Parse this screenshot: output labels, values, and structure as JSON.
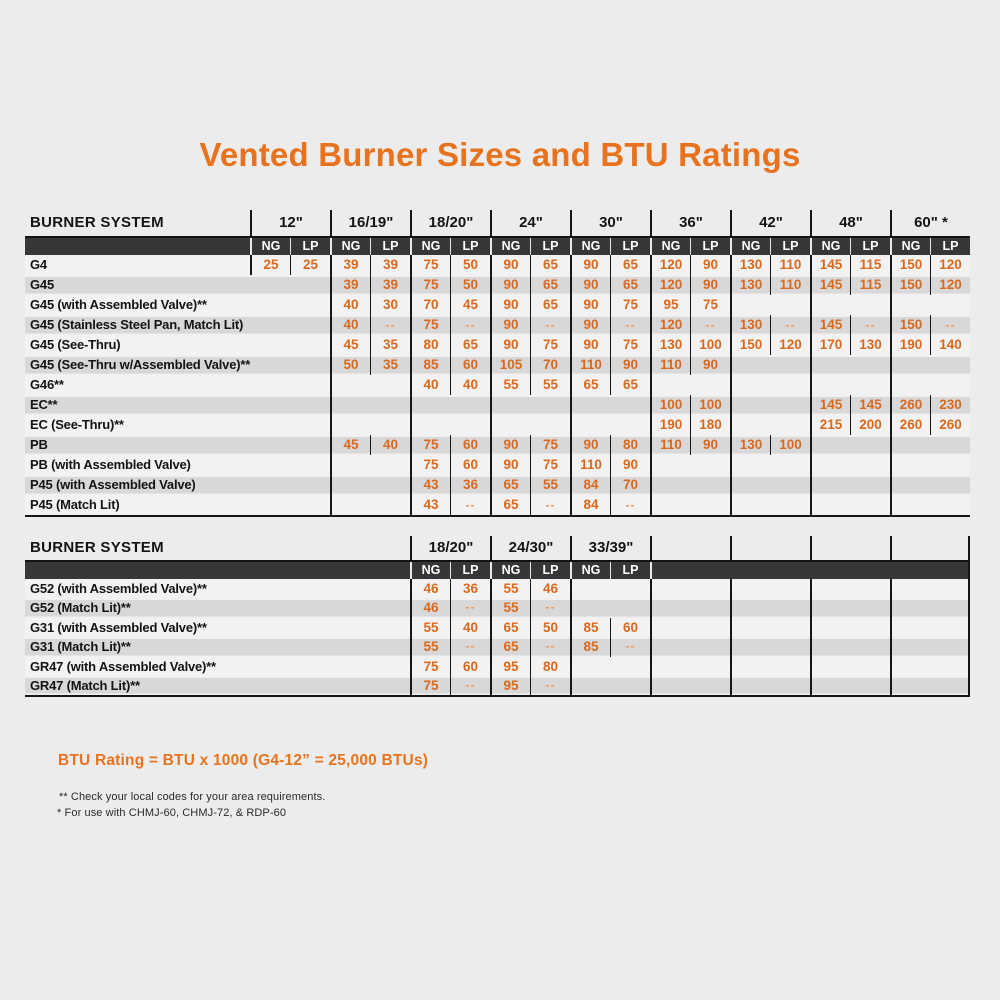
{
  "page": {
    "title": "Vented Burner Sizes and BTU Ratings"
  },
  "colors": {
    "accent_orange": "#e8731f",
    "value_orange": "#d9691f",
    "dash_orange": "#e59a60",
    "header_strip": "#373737",
    "row_light": "#f2f2f2",
    "row_band": "#d8d8d8",
    "line_black": "#161616",
    "page_background": "#ececec"
  },
  "table1": {
    "header_label": "BURNER SYSTEM",
    "gas_labels": [
      "NG",
      "LP"
    ],
    "sizes": [
      "12\"",
      "16/19\"",
      "18/20\"",
      "24\"",
      "30\"",
      "36\"",
      "42\"",
      "48\"",
      "60\" *"
    ],
    "rows": [
      {
        "name": "G4",
        "cells": [
          [
            25,
            25
          ],
          [
            39,
            39
          ],
          [
            75,
            50
          ],
          [
            90,
            65
          ],
          [
            90,
            65
          ],
          [
            120,
            90
          ],
          [
            130,
            110
          ],
          [
            145,
            115
          ],
          [
            150,
            120
          ]
        ]
      },
      {
        "name": "G45",
        "cells": [
          null,
          [
            39,
            39
          ],
          [
            75,
            50
          ],
          [
            90,
            65
          ],
          [
            90,
            65
          ],
          [
            120,
            90
          ],
          [
            130,
            110
          ],
          [
            145,
            115
          ],
          [
            150,
            120
          ]
        ]
      },
      {
        "name": "G45 (with Assembled Valve)**",
        "cells": [
          null,
          [
            40,
            30
          ],
          [
            70,
            45
          ],
          [
            90,
            65
          ],
          [
            90,
            75
          ],
          [
            95,
            75
          ],
          null,
          null,
          null
        ]
      },
      {
        "name": "G45 (Stainless Steel Pan, Match Lit)",
        "cells": [
          null,
          [
            40,
            "--"
          ],
          [
            75,
            "--"
          ],
          [
            90,
            "--"
          ],
          [
            90,
            "--"
          ],
          [
            120,
            "--"
          ],
          [
            130,
            "--"
          ],
          [
            145,
            "--"
          ],
          [
            150,
            "--"
          ]
        ]
      },
      {
        "name": "G45 (See-Thru)",
        "cells": [
          null,
          [
            45,
            35
          ],
          [
            80,
            65
          ],
          [
            90,
            75
          ],
          [
            90,
            75
          ],
          [
            130,
            100
          ],
          [
            150,
            120
          ],
          [
            170,
            130
          ],
          [
            190,
            140
          ]
        ]
      },
      {
        "name": "G45 (See-Thru w/Assembled Valve)**",
        "cells": [
          null,
          [
            50,
            35
          ],
          [
            85,
            60
          ],
          [
            105,
            70
          ],
          [
            110,
            90
          ],
          [
            110,
            90
          ],
          null,
          null,
          null
        ]
      },
      {
        "name": "G46**",
        "cells": [
          null,
          null,
          [
            40,
            40
          ],
          [
            55,
            55
          ],
          [
            65,
            65
          ],
          null,
          null,
          null,
          null
        ]
      },
      {
        "name": "EC**",
        "cells": [
          null,
          null,
          null,
          null,
          null,
          [
            100,
            100
          ],
          null,
          [
            145,
            145
          ],
          [
            260,
            230
          ]
        ]
      },
      {
        "name": "EC (See-Thru)**",
        "cells": [
          null,
          null,
          null,
          null,
          null,
          [
            190,
            180
          ],
          null,
          [
            215,
            200
          ],
          [
            260,
            260
          ]
        ]
      },
      {
        "name": "PB",
        "cells": [
          null,
          [
            45,
            40
          ],
          [
            75,
            60
          ],
          [
            90,
            75
          ],
          [
            90,
            80
          ],
          [
            110,
            90
          ],
          [
            130,
            100
          ],
          null,
          null
        ]
      },
      {
        "name": "PB (with Assembled Valve)",
        "cells": [
          null,
          null,
          [
            75,
            60
          ],
          [
            90,
            75
          ],
          [
            110,
            90
          ],
          null,
          null,
          null,
          null
        ]
      },
      {
        "name": "P45 (with Assembled Valve)",
        "cells": [
          null,
          null,
          [
            43,
            36
          ],
          [
            65,
            55
          ],
          [
            84,
            70
          ],
          null,
          null,
          null,
          null
        ]
      },
      {
        "name": "P45 (Match Lit)",
        "cells": [
          null,
          null,
          [
            43,
            "--"
          ],
          [
            65,
            "--"
          ],
          [
            84,
            "--"
          ],
          null,
          null,
          null,
          null
        ]
      }
    ]
  },
  "table2": {
    "header_label": "BURNER SYSTEM",
    "gas_labels": [
      "NG",
      "LP"
    ],
    "sizes": [
      "18/20\"",
      "24/30\"",
      "33/39\"",
      "",
      "",
      "",
      ""
    ],
    "rows": [
      {
        "name": "G52 (with Assembled Valve)**",
        "cells": [
          [
            46,
            36
          ],
          [
            55,
            46
          ],
          null,
          null,
          null,
          null,
          null
        ]
      },
      {
        "name": "G52 (Match Lit)**",
        "cells": [
          [
            46,
            "--"
          ],
          [
            55,
            "--"
          ],
          null,
          null,
          null,
          null,
          null
        ]
      },
      {
        "name": "G31 (with Assembled Valve)**",
        "cells": [
          [
            55,
            40
          ],
          [
            65,
            50
          ],
          [
            85,
            60
          ],
          null,
          null,
          null,
          null
        ]
      },
      {
        "name": "G31 (Match Lit)**",
        "cells": [
          [
            55,
            "--"
          ],
          [
            65,
            "--"
          ],
          [
            85,
            "--"
          ],
          null,
          null,
          null,
          null
        ]
      },
      {
        "name": "GR47 (with Assembled Valve)**",
        "cells": [
          [
            75,
            60
          ],
          [
            95,
            80
          ],
          null,
          null,
          null,
          null,
          null
        ]
      },
      {
        "name": "GR47 (Match Lit)**",
        "cells": [
          [
            75,
            "--"
          ],
          [
            95,
            "--"
          ],
          null,
          null,
          null,
          null,
          null
        ]
      }
    ]
  },
  "footer": {
    "btu_note": "BTU Rating = BTU x 1000 (G4-12” = 25,000 BTUs)",
    "footnote_double": "** Check your local codes for your area requirements.",
    "footnote_single": "* For use with CHMJ-60, CHMJ-72, & RDP-60"
  }
}
